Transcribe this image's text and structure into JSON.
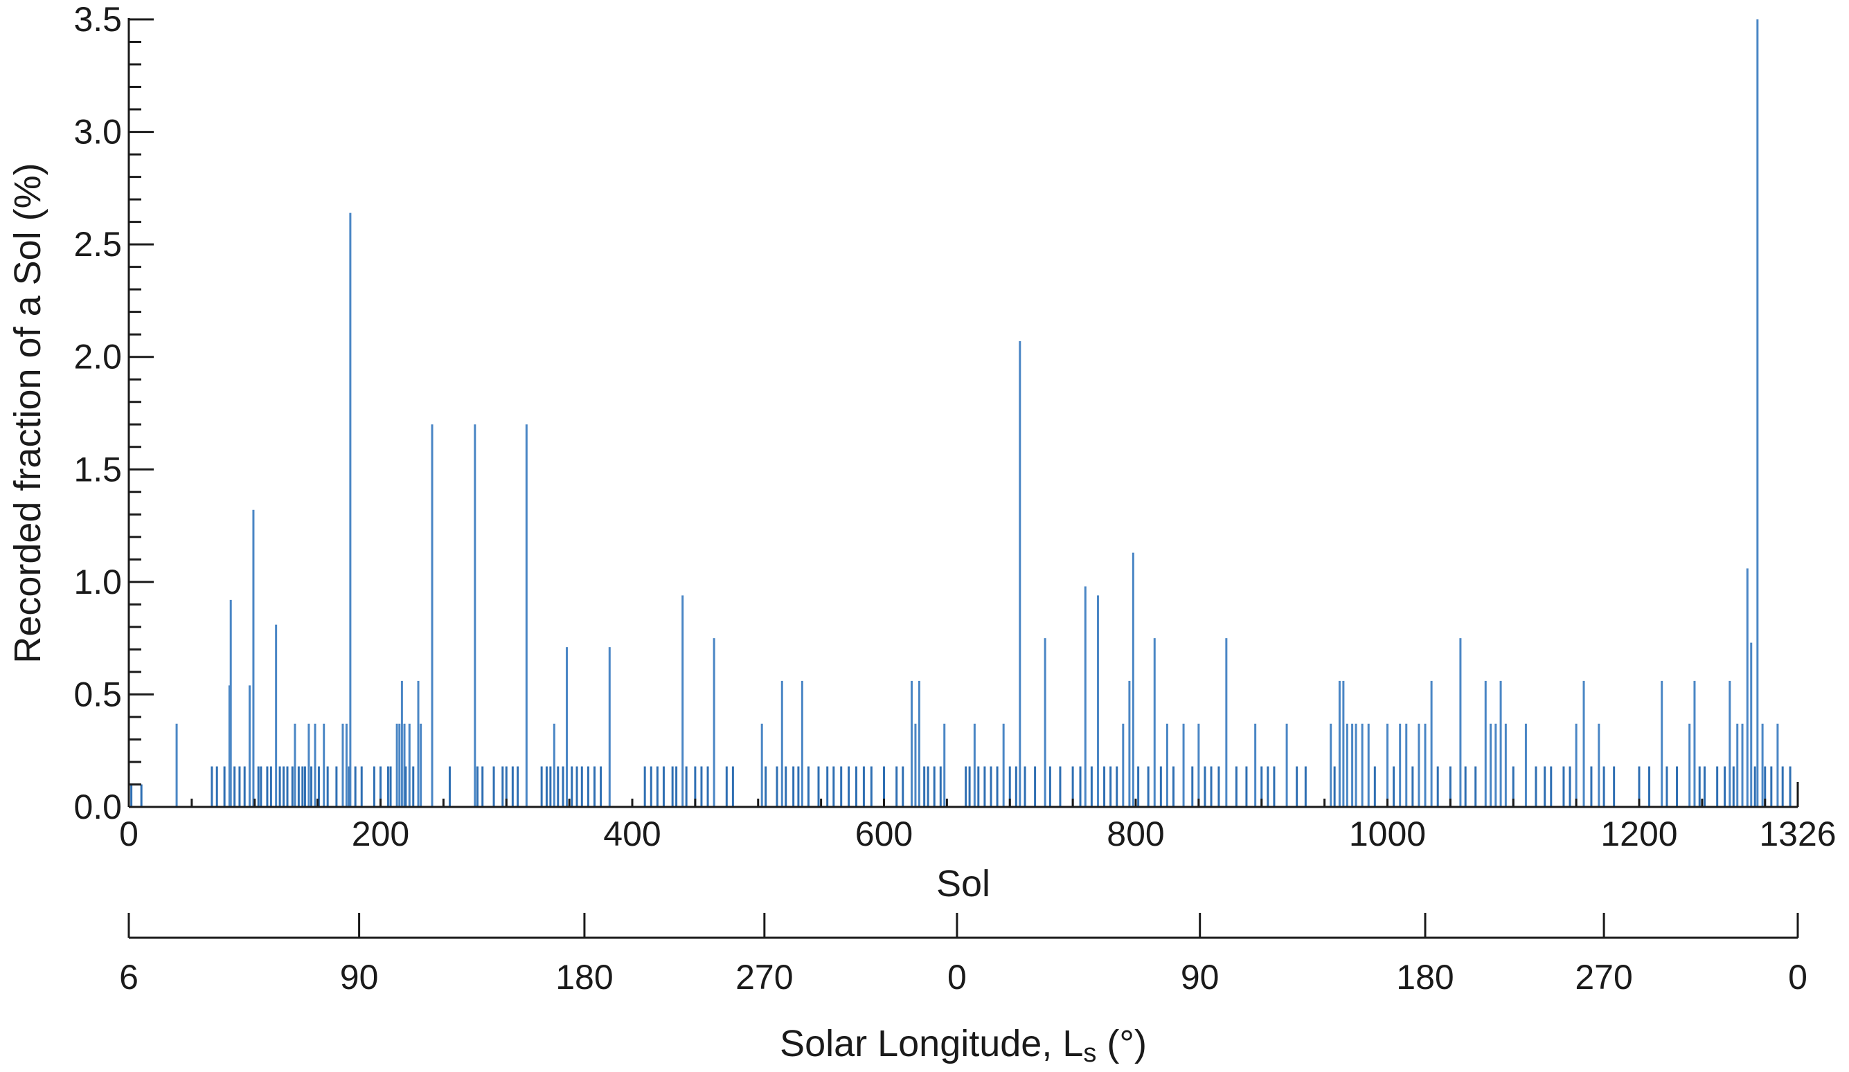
{
  "chart_data": {
    "type": "bar",
    "title": "",
    "xlabel": "Sol",
    "ylabel": "Recorded fraction of a Sol (%)",
    "xlim": [
      0,
      1326
    ],
    "ylim": [
      0,
      3.5
    ],
    "grid": false,
    "bar_color": "#4a86c5",
    "bar_color_dark": "#2f6fb3",
    "y_ticks": [
      {
        "value": 0.0,
        "label": "0.0"
      },
      {
        "value": 0.5,
        "label": "0.5"
      },
      {
        "value": 1.0,
        "label": "1.0"
      },
      {
        "value": 1.5,
        "label": "1.5"
      },
      {
        "value": 2.0,
        "label": "2.0"
      },
      {
        "value": 2.5,
        "label": "2.5"
      },
      {
        "value": 3.0,
        "label": "3.0"
      },
      {
        "value": 3.5,
        "label": "3.5"
      }
    ],
    "x_ticks": [
      {
        "value": 0,
        "label": "0"
      },
      {
        "value": 200,
        "label": "200"
      },
      {
        "value": 400,
        "label": "400"
      },
      {
        "value": 600,
        "label": "600"
      },
      {
        "value": 800,
        "label": "800"
      },
      {
        "value": 1000,
        "label": "1000"
      },
      {
        "value": 1200,
        "label": "1200"
      },
      {
        "value": 1326,
        "label": "1326"
      }
    ],
    "secondary_axis": {
      "label": "Solar Longitude, L",
      "label_subscript": "s",
      "label_suffix": " (°)",
      "ticks": [
        {
          "sol": 0,
          "label": "6"
        },
        {
          "sol": 183,
          "label": "90"
        },
        {
          "sol": 362,
          "label": "180"
        },
        {
          "sol": 505,
          "label": "270"
        },
        {
          "sol": 658,
          "label": "0"
        },
        {
          "sol": 851,
          "label": "90"
        },
        {
          "sol": 1030,
          "label": "180"
        },
        {
          "sol": 1172,
          "label": "270"
        },
        {
          "sol": 1326,
          "label": "0"
        }
      ]
    },
    "values": [
      [
        2,
        0.1
      ],
      [
        10,
        0.1
      ],
      [
        38,
        0.37
      ],
      [
        66,
        0.18
      ],
      [
        70,
        0.18
      ],
      [
        76,
        0.18
      ],
      [
        80,
        0.54
      ],
      [
        81,
        0.92
      ],
      [
        84,
        0.18
      ],
      [
        88,
        0.18
      ],
      [
        92,
        0.18
      ],
      [
        96,
        0.54
      ],
      [
        99,
        1.32
      ],
      [
        103,
        0.18
      ],
      [
        105,
        0.18
      ],
      [
        110,
        0.18
      ],
      [
        113,
        0.18
      ],
      [
        117,
        0.81
      ],
      [
        120,
        0.18
      ],
      [
        123,
        0.18
      ],
      [
        126,
        0.18
      ],
      [
        130,
        0.18
      ],
      [
        132,
        0.37
      ],
      [
        135,
        0.18
      ],
      [
        138,
        0.18
      ],
      [
        140,
        0.18
      ],
      [
        143,
        0.37
      ],
      [
        145,
        0.18
      ],
      [
        148,
        0.37
      ],
      [
        151,
        0.18
      ],
      [
        155,
        0.37
      ],
      [
        158,
        0.18
      ],
      [
        165,
        0.18
      ],
      [
        170,
        0.37
      ],
      [
        173,
        0.37
      ],
      [
        175,
        0.18
      ],
      [
        176,
        2.64
      ],
      [
        180,
        0.18
      ],
      [
        185,
        0.18
      ],
      [
        195,
        0.18
      ],
      [
        200,
        0.18
      ],
      [
        206,
        0.18
      ],
      [
        208,
        0.18
      ],
      [
        213,
        0.37
      ],
      [
        215,
        0.37
      ],
      [
        217,
        0.56
      ],
      [
        219,
        0.37
      ],
      [
        220,
        0.18
      ],
      [
        223,
        0.37
      ],
      [
        226,
        0.18
      ],
      [
        230,
        0.56
      ],
      [
        232,
        0.37
      ],
      [
        241,
        1.7
      ],
      [
        255,
        0.18
      ],
      [
        275,
        1.7
      ],
      [
        277,
        0.18
      ],
      [
        281,
        0.18
      ],
      [
        290,
        0.18
      ],
      [
        297,
        0.18
      ],
      [
        300,
        0.18
      ],
      [
        305,
        0.18
      ],
      [
        309,
        0.18
      ],
      [
        316,
        1.7
      ],
      [
        328,
        0.18
      ],
      [
        332,
        0.18
      ],
      [
        335,
        0.18
      ],
      [
        338,
        0.37
      ],
      [
        341,
        0.18
      ],
      [
        345,
        0.18
      ],
      [
        348,
        0.71
      ],
      [
        352,
        0.18
      ],
      [
        356,
        0.18
      ],
      [
        360,
        0.18
      ],
      [
        365,
        0.18
      ],
      [
        370,
        0.18
      ],
      [
        375,
        0.18
      ],
      [
        382,
        0.71
      ],
      [
        410,
        0.18
      ],
      [
        415,
        0.18
      ],
      [
        420,
        0.18
      ],
      [
        425,
        0.18
      ],
      [
        432,
        0.18
      ],
      [
        435,
        0.18
      ],
      [
        440,
        0.94
      ],
      [
        443,
        0.18
      ],
      [
        450,
        0.18
      ],
      [
        455,
        0.18
      ],
      [
        460,
        0.18
      ],
      [
        465,
        0.75
      ],
      [
        475,
        0.18
      ],
      [
        480,
        0.18
      ],
      [
        503,
        0.37
      ],
      [
        506,
        0.18
      ],
      [
        515,
        0.18
      ],
      [
        519,
        0.56
      ],
      [
        522,
        0.18
      ],
      [
        528,
        0.18
      ],
      [
        532,
        0.18
      ],
      [
        535,
        0.56
      ],
      [
        540,
        0.18
      ],
      [
        548,
        0.18
      ],
      [
        555,
        0.18
      ],
      [
        560,
        0.18
      ],
      [
        566,
        0.18
      ],
      [
        572,
        0.18
      ],
      [
        578,
        0.18
      ],
      [
        584,
        0.18
      ],
      [
        590,
        0.18
      ],
      [
        600,
        0.18
      ],
      [
        610,
        0.18
      ],
      [
        615,
        0.18
      ],
      [
        622,
        0.56
      ],
      [
        625,
        0.37
      ],
      [
        628,
        0.56
      ],
      [
        632,
        0.18
      ],
      [
        635,
        0.18
      ],
      [
        640,
        0.18
      ],
      [
        645,
        0.18
      ],
      [
        648,
        0.37
      ],
      [
        665,
        0.18
      ],
      [
        668,
        0.18
      ],
      [
        672,
        0.37
      ],
      [
        675,
        0.18
      ],
      [
        680,
        0.18
      ],
      [
        685,
        0.18
      ],
      [
        690,
        0.18
      ],
      [
        695,
        0.37
      ],
      [
        700,
        0.18
      ],
      [
        705,
        0.18
      ],
      [
        708,
        2.07
      ],
      [
        712,
        0.18
      ],
      [
        720,
        0.18
      ],
      [
        728,
        0.75
      ],
      [
        732,
        0.18
      ],
      [
        740,
        0.18
      ],
      [
        750,
        0.18
      ],
      [
        756,
        0.18
      ],
      [
        760,
        0.98
      ],
      [
        765,
        0.18
      ],
      [
        770,
        0.94
      ],
      [
        775,
        0.18
      ],
      [
        780,
        0.18
      ],
      [
        785,
        0.18
      ],
      [
        790,
        0.37
      ],
      [
        795,
        0.56
      ],
      [
        798,
        1.13
      ],
      [
        802,
        0.18
      ],
      [
        810,
        0.18
      ],
      [
        815,
        0.75
      ],
      [
        820,
        0.18
      ],
      [
        825,
        0.37
      ],
      [
        830,
        0.18
      ],
      [
        838,
        0.37
      ],
      [
        845,
        0.18
      ],
      [
        850,
        0.37
      ],
      [
        855,
        0.18
      ],
      [
        860,
        0.18
      ],
      [
        866,
        0.18
      ],
      [
        872,
        0.75
      ],
      [
        880,
        0.18
      ],
      [
        888,
        0.18
      ],
      [
        895,
        0.37
      ],
      [
        900,
        0.18
      ],
      [
        905,
        0.18
      ],
      [
        910,
        0.18
      ],
      [
        920,
        0.37
      ],
      [
        928,
        0.18
      ],
      [
        935,
        0.18
      ],
      [
        955,
        0.37
      ],
      [
        958,
        0.18
      ],
      [
        962,
        0.56
      ],
      [
        965,
        0.56
      ],
      [
        968,
        0.37
      ],
      [
        972,
        0.37
      ],
      [
        975,
        0.37
      ],
      [
        980,
        0.37
      ],
      [
        985,
        0.37
      ],
      [
        990,
        0.18
      ],
      [
        1000,
        0.37
      ],
      [
        1005,
        0.18
      ],
      [
        1010,
        0.37
      ],
      [
        1015,
        0.37
      ],
      [
        1020,
        0.18
      ],
      [
        1025,
        0.37
      ],
      [
        1030,
        0.37
      ],
      [
        1035,
        0.56
      ],
      [
        1040,
        0.18
      ],
      [
        1050,
        0.18
      ],
      [
        1058,
        0.75
      ],
      [
        1062,
        0.18
      ],
      [
        1070,
        0.18
      ],
      [
        1078,
        0.56
      ],
      [
        1082,
        0.37
      ],
      [
        1086,
        0.37
      ],
      [
        1090,
        0.56
      ],
      [
        1094,
        0.37
      ],
      [
        1100,
        0.18
      ],
      [
        1110,
        0.37
      ],
      [
        1118,
        0.18
      ],
      [
        1125,
        0.18
      ],
      [
        1130,
        0.18
      ],
      [
        1140,
        0.18
      ],
      [
        1145,
        0.18
      ],
      [
        1150,
        0.37
      ],
      [
        1156,
        0.56
      ],
      [
        1162,
        0.18
      ],
      [
        1168,
        0.37
      ],
      [
        1172,
        0.18
      ],
      [
        1180,
        0.18
      ],
      [
        1200,
        0.18
      ],
      [
        1208,
        0.18
      ],
      [
        1218,
        0.56
      ],
      [
        1222,
        0.18
      ],
      [
        1230,
        0.18
      ],
      [
        1240,
        0.37
      ],
      [
        1244,
        0.56
      ],
      [
        1248,
        0.18
      ],
      [
        1252,
        0.18
      ],
      [
        1262,
        0.18
      ],
      [
        1268,
        0.18
      ],
      [
        1272,
        0.56
      ],
      [
        1275,
        0.18
      ],
      [
        1278,
        0.37
      ],
      [
        1282,
        0.37
      ],
      [
        1286,
        1.06
      ],
      [
        1289,
        0.73
      ],
      [
        1292,
        0.18
      ],
      [
        1294,
        3.5
      ],
      [
        1298,
        0.37
      ],
      [
        1300,
        0.18
      ],
      [
        1305,
        0.18
      ],
      [
        1310,
        0.37
      ],
      [
        1314,
        0.18
      ],
      [
        1320,
        0.18
      ]
    ]
  }
}
